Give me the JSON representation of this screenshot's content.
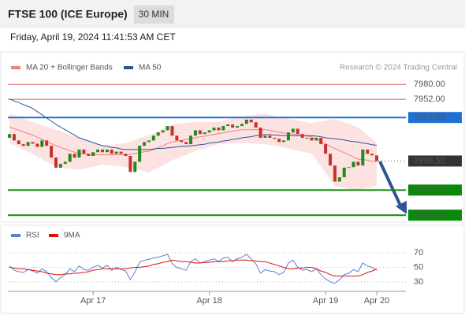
{
  "header": {
    "title": "FTSE 100 (ICE Europe)",
    "timeframe": "30 MIN",
    "timestamp": "Friday, April 19, 2024 11:41:53 AM CET",
    "attribution": "Research © 2024 Trading Central"
  },
  "chart_data": [
    {
      "type": "candlestick",
      "first_open": 7880,
      "values": [
        7887,
        7875,
        7868,
        7865,
        7872,
        7869,
        7863,
        7875,
        7865,
        7843,
        7824,
        7831,
        7835,
        7850,
        7843,
        7858,
        7850,
        7846,
        7853,
        7858,
        7853,
        7858,
        7850,
        7854,
        7850,
        7846,
        7816,
        7835,
        7865,
        7872,
        7875,
        7884,
        7890,
        7894,
        7902,
        7884,
        7875,
        7872,
        7868,
        7884,
        7894,
        7887,
        7890,
        7894,
        7899,
        7894,
        7902,
        7905,
        7899,
        7902,
        7906,
        7914,
        7909,
        7899,
        7880,
        7884,
        7880,
        7878,
        7872,
        7875,
        7890,
        7897,
        7887,
        7880,
        7880,
        7875,
        7880,
        7868,
        7850,
        7828,
        7798,
        7806,
        7824,
        7825,
        7835,
        7828,
        7858,
        7850,
        7847,
        7836.5
      ],
      "up_color": "#1e8c1e",
      "down_color": "#c8322a",
      "series": [
        {
          "name": "MA 20 + Bollinger Bands",
          "color": "#f08080",
          "band_color": "#fde2e2",
          "values": [
            7900,
            7897,
            7894,
            7891,
            7888,
            7885,
            7881,
            7877,
            7873,
            7869,
            7865,
            7862,
            7859,
            7856,
            7853,
            7850,
            7850,
            7849,
            7849,
            7848,
            7848,
            7848,
            7848,
            7848,
            7848,
            7848,
            7849,
            7851,
            7852,
            7854,
            7855,
            7858,
            7862,
            7865,
            7869,
            7872,
            7874,
            7875,
            7877,
            7878,
            7880,
            7882,
            7883,
            7885,
            7886,
            7888,
            7889,
            7891,
            7892,
            7894,
            7895,
            7895,
            7895,
            7895,
            7895,
            7895,
            7894,
            7892,
            7891,
            7889,
            7888,
            7887,
            7886,
            7884,
            7883,
            7882,
            7878,
            7873,
            7869,
            7864,
            7860,
            7856,
            7852,
            7848,
            7844,
            7840,
            7839,
            7838,
            7836,
            7835
          ],
          "upper": [
            7925,
            7922,
            7919,
            7916,
            7913,
            7910,
            7907,
            7904,
            7901,
            7898,
            7895,
            7892,
            7889,
            7886,
            7883,
            7880,
            7877,
            7874,
            7871,
            7868,
            7865,
            7866,
            7867,
            7868,
            7869,
            7870,
            7873,
            7876,
            7879,
            7882,
            7885,
            7889,
            7893,
            7897,
            7901,
            7905,
            7906,
            7907,
            7908,
            7909,
            7910,
            7910,
            7910,
            7910,
            7910,
            7910,
            7912,
            7914,
            7916,
            7918,
            7920,
            7921,
            7922,
            7923,
            7924,
            7925,
            7923,
            7921,
            7919,
            7917,
            7915,
            7914,
            7912,
            7911,
            7909,
            7908,
            7909,
            7911,
            7912,
            7914,
            7915,
            7912,
            7909,
            7906,
            7903,
            7900,
            7893,
            7885,
            7878,
            7870
          ],
          "lower": [
            7870,
            7866,
            7862,
            7858,
            7854,
            7850,
            7845,
            7840,
            7835,
            7830,
            7825,
            7824,
            7823,
            7822,
            7821,
            7820,
            7822,
            7824,
            7826,
            7828,
            7830,
            7829,
            7828,
            7827,
            7826,
            7825,
            7823,
            7821,
            7819,
            7817,
            7815,
            7820,
            7824,
            7829,
            7833,
            7838,
            7841,
            7845,
            7848,
            7852,
            7855,
            7858,
            7860,
            7863,
            7865,
            7868,
            7868,
            7869,
            7869,
            7870,
            7870,
            7870,
            7869,
            7869,
            7868,
            7868,
            7866,
            7865,
            7863,
            7862,
            7860,
            7858,
            7856,
            7854,
            7852,
            7850,
            7838,
            7826,
            7814,
            7802,
            7790,
            7788,
            7786,
            7784,
            7782,
            7780,
            7783,
            7785,
            7788,
            7790
          ]
        },
        {
          "name": "MA 50",
          "color": "#2f5597",
          "values": [
            7953,
            7949,
            7946,
            7942,
            7939,
            7935,
            7929,
            7923,
            7917,
            7911,
            7905,
            7900,
            7895,
            7890,
            7885,
            7880,
            7877,
            7874,
            7871,
            7868,
            7865,
            7864,
            7862,
            7861,
            7859,
            7858,
            7858,
            7858,
            7858,
            7858,
            7858,
            7859,
            7860,
            7860,
            7861,
            7862,
            7863,
            7864,
            7864,
            7865,
            7866,
            7867,
            7868,
            7870,
            7871,
            7872,
            7874,
            7875,
            7877,
            7878,
            7880,
            7881,
            7882,
            7884,
            7885,
            7886,
            7886,
            7885,
            7885,
            7884,
            7884,
            7884,
            7884,
            7884,
            7884,
            7884,
            7883,
            7882,
            7880,
            7879,
            7878,
            7877,
            7876,
            7874,
            7873,
            7872,
            7870,
            7869,
            7867,
            7866
          ]
        }
      ],
      "levels": [
        {
          "value": 7980,
          "label": "7980.00",
          "color": "#e05050",
          "boxed": false,
          "dashed": false
        },
        {
          "value": 7952,
          "label": "7952.00",
          "color": "#e05050",
          "boxed": false,
          "dashed": false
        },
        {
          "value": 7918,
          "label": "7918.00",
          "color": "#1f6fd6",
          "boxed": true,
          "dashed": false
        },
        {
          "value": 7836.5,
          "label": "7836.50",
          "color": "#333333",
          "boxed": true,
          "dashed": true
        },
        {
          "value": 7782,
          "label": "7782.00",
          "color": "#0a8a0a",
          "boxed": true,
          "dashed": false
        },
        {
          "value": 7735,
          "label": "7735.00",
          "color": "#0a8a0a",
          "boxed": true,
          "dashed": false
        }
      ],
      "ylim": [
        7725,
        7998
      ]
    },
    {
      "type": "line",
      "categories": [
        null,
        null,
        null,
        null,
        null,
        null,
        null,
        null,
        null,
        null,
        null,
        null,
        null,
        null,
        null,
        null,
        null,
        null,
        "Apr 17",
        null,
        null,
        null,
        null,
        null,
        null,
        null,
        null,
        null,
        null,
        null,
        null,
        null,
        null,
        null,
        null,
        null,
        null,
        null,
        null,
        null,
        null,
        null,
        null,
        "Apr 18",
        null,
        null,
        null,
        null,
        null,
        null,
        null,
        null,
        null,
        null,
        null,
        null,
        null,
        null,
        null,
        null,
        null,
        null,
        null,
        null,
        null,
        null,
        null,
        null,
        "Apr 19",
        null,
        null,
        null,
        null,
        null,
        null,
        null,
        null,
        null,
        null,
        "Apr 20"
      ],
      "series": [
        {
          "name": "RSI",
          "color": "#5b7fd6",
          "values": [
            52,
            46,
            44,
            43,
            47,
            45,
            42,
            48,
            44,
            36,
            30,
            36,
            40,
            48,
            44,
            52,
            47,
            46,
            50,
            53,
            49,
            53,
            46,
            50,
            47,
            45,
            33,
            44,
            57,
            60,
            61,
            63,
            64,
            66,
            68,
            55,
            50,
            48,
            46,
            58,
            62,
            56,
            58,
            60,
            62,
            58,
            63,
            64,
            58,
            62,
            64,
            68,
            62,
            55,
            42,
            47,
            45,
            44,
            40,
            43,
            56,
            60,
            50,
            46,
            47,
            44,
            48,
            40,
            34,
            30,
            28,
            33,
            40,
            42,
            47,
            44,
            56,
            52,
            50,
            46
          ]
        },
        {
          "name": "9MA",
          "color": "#e01010",
          "values": [
            50,
            49,
            48,
            48,
            47,
            46,
            45,
            44,
            42,
            41,
            40,
            40,
            41,
            41,
            42,
            42,
            43,
            44,
            46,
            47,
            48,
            48,
            48,
            48,
            48,
            48,
            49,
            50,
            50,
            51,
            52,
            54,
            55,
            57,
            58,
            60,
            59,
            58,
            58,
            57,
            56,
            56,
            57,
            57,
            58,
            58,
            58,
            59,
            59,
            60,
            60,
            60,
            59,
            59,
            58,
            58,
            56,
            54,
            52,
            50,
            48,
            48,
            49,
            49,
            50,
            50,
            48,
            45,
            43,
            40,
            38,
            38,
            38,
            38,
            38,
            38,
            40,
            43,
            45,
            48
          ]
        }
      ],
      "ylim": [
        19,
        93
      ],
      "yticks": [
        30,
        50,
        70
      ],
      "grid": true
    }
  ]
}
